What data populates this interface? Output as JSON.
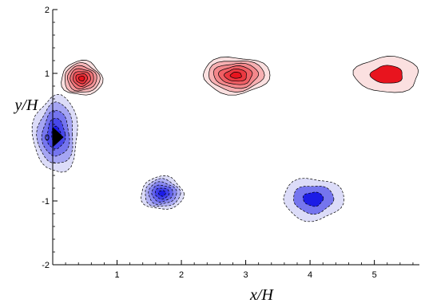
{
  "chart_data": {
    "type": "contour",
    "title": "",
    "xlabel": "x/H",
    "ylabel": "y/H",
    "xlim": [
      0,
      5.7
    ],
    "ylim": [
      -2,
      2
    ],
    "x_ticks": [
      "1",
      "2",
      "3",
      "4",
      "5"
    ],
    "x_tick_values": [
      1,
      2,
      3,
      4,
      5
    ],
    "y_ticks": [
      "2",
      "1",
      "0",
      "-1",
      "-2"
    ],
    "y_tick_values": [
      2,
      1,
      0,
      -1,
      -2
    ],
    "grid": false,
    "colors": {
      "positive": "#e8141e",
      "positive_light": "#fbe0e0",
      "negative": "#1c1ce6",
      "negative_light": "#dcdcf8",
      "body": "#000000"
    },
    "positive_vortices": [
      {
        "x": 0.45,
        "y": 0.92,
        "rx": 0.32,
        "ry": 0.27,
        "levels": 7
      },
      {
        "x": 2.85,
        "y": 0.97,
        "rx": 0.52,
        "ry": 0.29,
        "levels": 6
      },
      {
        "x": 5.2,
        "y": 0.98,
        "rx": 0.5,
        "ry": 0.28,
        "levels": 2
      }
    ],
    "negative_vortices": [
      {
        "x": 1.7,
        "y": -0.88,
        "rx": 0.33,
        "ry": 0.26,
        "levels": 6
      },
      {
        "x": 4.05,
        "y": -0.97,
        "rx": 0.47,
        "ry": 0.33,
        "levels": 3
      },
      {
        "x": 0.05,
        "y": 0.05,
        "rx": 0.35,
        "ry": 0.6,
        "levels": 5
      }
    ]
  }
}
